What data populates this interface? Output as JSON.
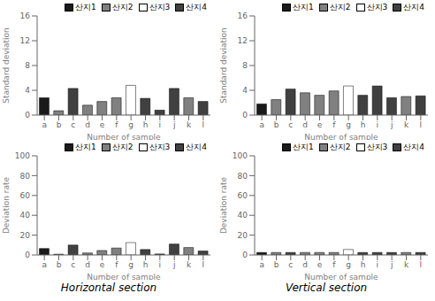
{
  "chart_data": [
    {
      "type": "bar",
      "categories": [
        "a",
        "b",
        "c",
        "d",
        "e",
        "f",
        "g",
        "h",
        "i",
        "j",
        "k",
        "l"
      ],
      "x_label": "Number of sample",
      "y_label": "Standard deviation",
      "series": [
        {
          "name": "산지1",
          "color": "#1a1a1a",
          "values": [
            2.8,
            0,
            0,
            0,
            0,
            0,
            0,
            0,
            0,
            0,
            0,
            0
          ]
        },
        {
          "name": "산지2",
          "color": "#808080",
          "values": [
            0,
            0.7,
            0,
            1.6,
            2.2,
            2.8,
            0,
            0,
            0,
            0,
            2.8,
            0
          ]
        },
        {
          "name": "산지3",
          "color": "#ffffff",
          "values": [
            0,
            0,
            0,
            0,
            0,
            0,
            4.8,
            0,
            0,
            0,
            0,
            0
          ]
        },
        {
          "name": "산지4",
          "color": "#404040",
          "values": [
            0,
            0,
            4.3,
            0,
            0,
            0,
            0,
            2.7,
            0.8,
            4.3,
            0,
            2.2
          ]
        }
      ],
      "ylim": [
        0,
        16
      ],
      "yticks": [
        0,
        4,
        8,
        12,
        16
      ],
      "legend": "upper right"
    },
    {
      "type": "bar",
      "categories": [
        "a",
        "b",
        "c",
        "d",
        "e",
        "f",
        "g",
        "h",
        "i",
        "j",
        "k",
        "l"
      ],
      "x_label": "Number of sample",
      "y_label": "Deviation rate",
      "series": [
        {
          "name": "산지1",
          "color": "#1a1a1a",
          "values": [
            6.5,
            0,
            0,
            0,
            0,
            0,
            0,
            0,
            0,
            0,
            0,
            0
          ]
        },
        {
          "name": "산지2",
          "color": "#808080",
          "values": [
            0,
            0.8,
            0,
            2.0,
            4.5,
            7.0,
            0,
            0,
            0,
            0,
            7.5,
            0
          ]
        },
        {
          "name": "산지3",
          "color": "#ffffff",
          "values": [
            0,
            0,
            0,
            0,
            0,
            0,
            12.5,
            0,
            0,
            0,
            0,
            0
          ]
        },
        {
          "name": "산지4",
          "color": "#404040",
          "values": [
            0,
            0,
            10.0,
            0,
            0,
            0,
            0,
            5.5,
            1.0,
            11.0,
            0,
            4.0
          ]
        }
      ],
      "ylim": [
        0,
        100
      ],
      "yticks": [
        0,
        20,
        40,
        60,
        80,
        100
      ],
      "legend": "upper right",
      "annotations": [
        "Horizontal section"
      ]
    },
    {
      "type": "bar",
      "categories": [
        "a",
        "b",
        "c",
        "d",
        "e",
        "f",
        "g",
        "h",
        "i",
        "j",
        "k",
        "l"
      ],
      "x_label": "Number of sample",
      "y_label": "Standard deviation",
      "series": [
        {
          "name": "산지1",
          "color": "#1a1a1a",
          "values": [
            1.8,
            0,
            0,
            0,
            0,
            0,
            0,
            0,
            0,
            0,
            0,
            0
          ]
        },
        {
          "name": "산지2",
          "color": "#808080",
          "values": [
            0,
            2.5,
            0,
            3.6,
            3.2,
            3.9,
            0,
            0,
            0,
            0,
            3.0,
            0
          ]
        },
        {
          "name": "산지3",
          "color": "#ffffff",
          "values": [
            0,
            0,
            0,
            0,
            0,
            0,
            4.7,
            0,
            0,
            0,
            0,
            0
          ]
        },
        {
          "name": "산지4",
          "color": "#404040",
          "values": [
            0,
            0,
            4.2,
            0,
            0,
            0,
            0,
            3.2,
            4.7,
            2.8,
            0,
            3.1
          ]
        }
      ],
      "ylim": [
        0,
        16
      ],
      "yticks": [
        0,
        4,
        8,
        12,
        16
      ],
      "legend": "upper right"
    },
    {
      "type": "bar",
      "categories": [
        "a",
        "b",
        "c",
        "d",
        "e",
        "f",
        "g",
        "h",
        "i",
        "j",
        "k",
        "l"
      ],
      "x_label": "Number of sample",
      "y_label": "Deviation rate",
      "series": [
        {
          "name": "산지1",
          "color": "#1a1a1a",
          "values": [
            2.5,
            0,
            0,
            0,
            0,
            0,
            0,
            0,
            0,
            0,
            0,
            0
          ]
        },
        {
          "name": "산지2",
          "color": "#808080",
          "values": [
            0,
            2.5,
            0,
            2.5,
            2.5,
            2.5,
            0,
            0,
            0,
            0,
            2.5,
            0
          ]
        },
        {
          "name": "산지3",
          "color": "#ffffff",
          "values": [
            0,
            0,
            0,
            0,
            0,
            0,
            5.5,
            0,
            0,
            0,
            0,
            0
          ]
        },
        {
          "name": "산지4",
          "color": "#404040",
          "values": [
            0,
            0,
            2.5,
            0,
            0,
            0,
            0,
            2.5,
            2.5,
            2.5,
            0,
            2.5
          ]
        }
      ],
      "ylim": [
        0,
        100
      ],
      "yticks": [
        0,
        20,
        40,
        60,
        80,
        100
      ],
      "legend": "upper right",
      "annotations": [
        "Vertical section"
      ]
    }
  ]
}
